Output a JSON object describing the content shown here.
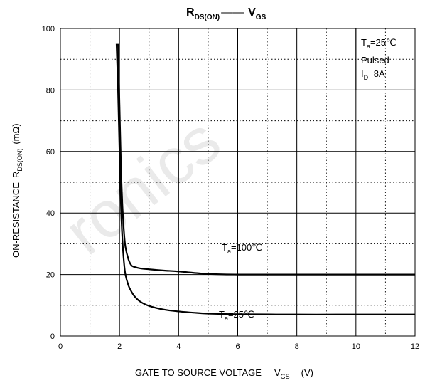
{
  "chart_data": {
    "type": "line",
    "title": {
      "main": "R",
      "main_sub": "DS(ON)",
      "sep": "——",
      "second": "V",
      "second_sub": "GS"
    },
    "xlabel": {
      "main": "GATE TO SOURCE VOLTAGE",
      "sym": "V",
      "sub": "GS",
      "unit": "(V)"
    },
    "ylabel": {
      "pre": "ON-RESISTANCE",
      "sym": "R",
      "sub": "DS(ON)",
      "unit": "(mΩ)"
    },
    "xlim": [
      0,
      12
    ],
    "ylim": [
      0,
      100
    ],
    "xticks": [
      0,
      2,
      4,
      6,
      8,
      10,
      12
    ],
    "yticks": [
      0,
      20,
      40,
      60,
      80,
      100
    ],
    "grid": "dotted, every 1 V and 10 mΩ",
    "conditions": {
      "line1_pre": "T",
      "line1_sub": "a",
      "line1_post": "=25℃",
      "line2": "Pulsed",
      "line3_pre": "I",
      "line3_sub": "D",
      "line3_post": "=8A"
    },
    "series": [
      {
        "label_pre": "T",
        "label_sub": "a",
        "label_post": "=100℃",
        "x": [
          1.95,
          2.0,
          2.05,
          2.1,
          2.15,
          2.2,
          2.3,
          2.4,
          2.5,
          2.7,
          3.0,
          3.5,
          4.0,
          5.0,
          6.0,
          8.0,
          10.0,
          12.0
        ],
        "y": [
          95,
          75,
          55,
          42,
          34,
          29,
          25,
          23,
          22.5,
          22,
          21.7,
          21.3,
          21,
          20.2,
          20,
          20,
          20,
          20
        ]
      },
      {
        "label_pre": "T",
        "label_sub": "a",
        "label_post": "=25℃",
        "x": [
          1.9,
          1.95,
          2.0,
          2.05,
          2.1,
          2.15,
          2.2,
          2.3,
          2.4,
          2.5,
          2.7,
          3.0,
          3.5,
          4.0,
          4.5,
          5.0,
          6.0,
          8.0,
          10.0,
          12.0
        ],
        "y": [
          95,
          80,
          60,
          42,
          31,
          24,
          20,
          16.5,
          14.5,
          13,
          11.2,
          9.8,
          8.6,
          8,
          7.6,
          7.3,
          7.1,
          7,
          7,
          7
        ]
      }
    ]
  },
  "watermark": "ronics"
}
